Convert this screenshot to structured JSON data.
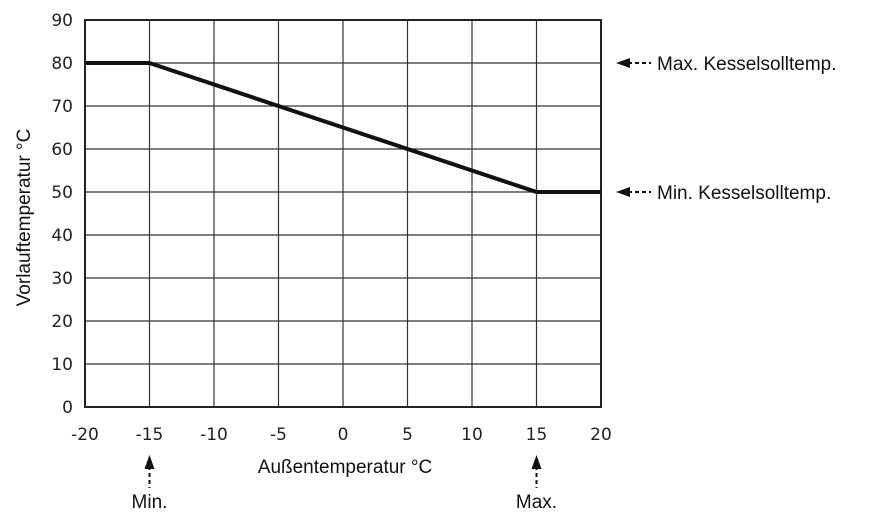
{
  "chart_data": {
    "type": "line",
    "xlabel": "Außentemperatur °C",
    "ylabel": "Vorlauftemperatur °C",
    "xlim": [
      -20,
      20
    ],
    "ylim": [
      0,
      90
    ],
    "xticks": [
      "-20",
      "-15",
      "-10",
      "-5",
      "0",
      "5",
      "10",
      "15",
      "20"
    ],
    "yticks": [
      "0",
      "10",
      "20",
      "30",
      "40",
      "50",
      "60",
      "70",
      "80",
      "90"
    ],
    "grid": true,
    "series": [
      {
        "x": [
          -20,
          -15,
          15,
          20
        ],
        "y": [
          80,
          80,
          50,
          50
        ]
      }
    ],
    "annotations": {
      "max_boiler": "Max. Kesselsolltemp.",
      "min_boiler": "Min. Kesselsolltemp.",
      "min_outdoor": "Min.",
      "max_outdoor": "Max."
    },
    "annotation_values": {
      "max_boiler_y": 80,
      "min_boiler_y": 50,
      "min_outdoor_x": -15,
      "max_outdoor_x": 15
    }
  }
}
